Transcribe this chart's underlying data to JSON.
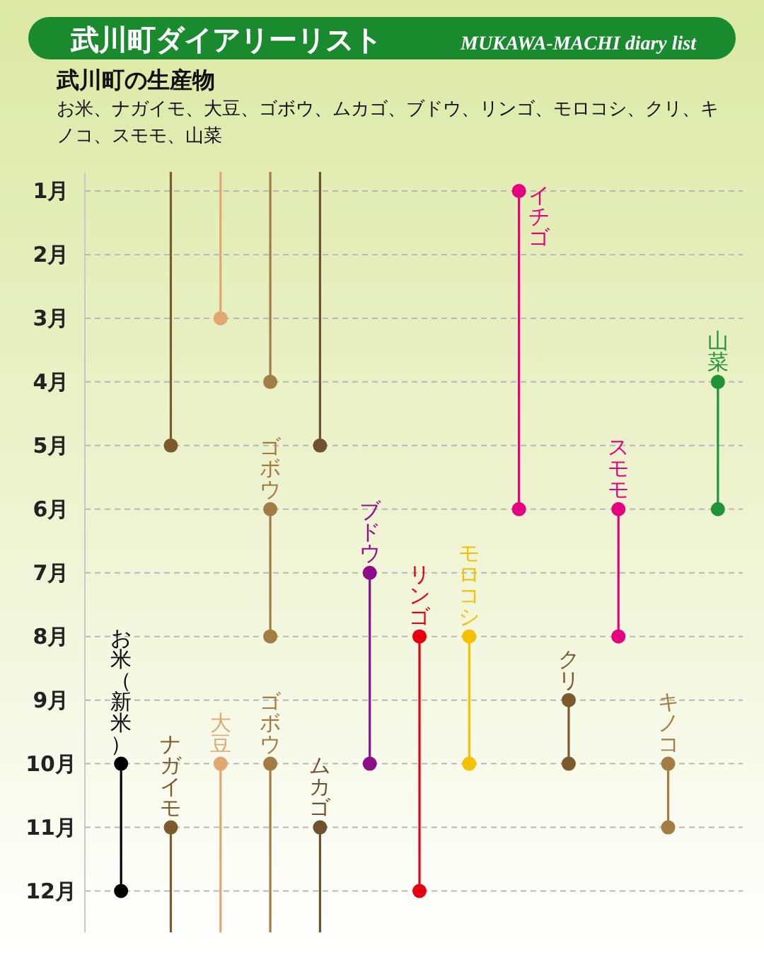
{
  "chart_data": {
    "type": "line",
    "title": "武川町ダイアリーリスト",
    "subtitle": "MUKAWA-MACHI diary list",
    "annotations": [
      "武川町の生産物",
      "お米、ナガイモ、大豆、ゴボウ、ムカゴ、ブドウ、リンゴ、モロコシ、クリ、キノコ、スモモ、山菜"
    ],
    "categories": [
      "お米（新米）",
      "ナガイモ",
      "大豆",
      "ゴボウ",
      "ムカゴ",
      "ブドウ",
      "リンゴ",
      "モロコシ",
      "イチゴ",
      "クリ",
      "スモモ",
      "キノコ",
      "山菜"
    ],
    "series": [
      {
        "x": [
          "お米（新米）",
          "お米（新米）"
        ],
        "values": [
          10,
          12
        ],
        "color": "#000000",
        "marker": "none"
      },
      {
        "x": [
          "ナガイモ",
          "ナガイモ"
        ],
        "values": [
          0.7,
          5
        ],
        "color": "#7b5a2e",
        "marker": "none"
      },
      {
        "x": [
          "ナガイモ",
          "ナガイモ"
        ],
        "values": [
          11,
          12.65
        ],
        "color": "#7b5a2e",
        "marker": "none"
      },
      {
        "x": [
          "大豆",
          "大豆"
        ],
        "values": [
          0.7,
          3
        ],
        "color": "#e0a870",
        "marker": "none"
      },
      {
        "x": [
          "大豆",
          "大豆"
        ],
        "values": [
          10,
          12.65
        ],
        "color": "#e0a870",
        "marker": "none"
      },
      {
        "x": [
          "ゴボウ",
          "ゴボウ"
        ],
        "values": [
          0.7,
          4
        ],
        "color": "#a27c45",
        "marker": "none"
      },
      {
        "x": [
          "ゴボウ",
          "ゴボウ"
        ],
        "values": [
          6,
          8
        ],
        "color": "#a27c45",
        "marker": "none"
      },
      {
        "x": [
          "ゴボウ",
          "ゴボウ"
        ],
        "values": [
          10,
          12.65
        ],
        "color": "#a27c45",
        "marker": "none"
      },
      {
        "x": [
          "ムカゴ",
          "ムカゴ"
        ],
        "values": [
          0.7,
          5
        ],
        "color": "#6e5230",
        "marker": "none"
      },
      {
        "x": [
          "ムカゴ",
          "ムカゴ"
        ],
        "values": [
          11,
          12.65
        ],
        "color": "#6e5230",
        "marker": "none"
      },
      {
        "x": [
          "ブドウ",
          "ブドウ"
        ],
        "values": [
          7,
          10
        ],
        "color": "#8e0e8a",
        "marker": "none"
      },
      {
        "x": [
          "リンゴ",
          "リンゴ"
        ],
        "values": [
          8,
          12
        ],
        "color": "#e60012",
        "marker": "none"
      },
      {
        "x": [
          "モロコシ",
          "モロコシ"
        ],
        "values": [
          8,
          10
        ],
        "color": "#f5c000",
        "marker": "none"
      },
      {
        "x": [
          "イチゴ",
          "イチゴ"
        ],
        "values": [
          1,
          6
        ],
        "color": "#e4007f",
        "marker": "none"
      },
      {
        "x": [
          "クリ",
          "クリ"
        ],
        "values": [
          9,
          10
        ],
        "color": "#7b5a2e",
        "marker": "none"
      },
      {
        "x": [
          "スモモ",
          "スモモ"
        ],
        "values": [
          6,
          8
        ],
        "color": "#e4007f",
        "marker": "none"
      },
      {
        "x": [
          "キノコ",
          "キノコ"
        ],
        "values": [
          10,
          11
        ],
        "color": "#a27c45",
        "marker": "none"
      },
      {
        "x": [
          "山菜",
          "山菜"
        ],
        "values": [
          4,
          6
        ],
        "color": "#1f9437",
        "marker": "none"
      },
      {
        "type": "scatter",
        "x": [
          "お米（新米）",
          "お米（新米）",
          "ナガイモ",
          "ナガイモ",
          "大豆",
          "大豆",
          "ゴボウ",
          "ゴボウ",
          "ゴボウ",
          "ゴボウ",
          "ムカゴ",
          "ムカゴ",
          "ブドウ",
          "ブドウ",
          "リンゴ",
          "リンゴ",
          "モロコシ",
          "モロコシ",
          "イチゴ",
          "イチゴ",
          "クリ",
          "クリ",
          "スモモ",
          "スモモ",
          "キノコ",
          "キノコ",
          "山菜",
          "山菜"
        ],
        "values": [
          10,
          12,
          5,
          11,
          3,
          10,
          4,
          6,
          8,
          10,
          5,
          11,
          7,
          10,
          8,
          12,
          8,
          10,
          1,
          6,
          9,
          10,
          6,
          8,
          10,
          11,
          4,
          6
        ],
        "colors": [
          "#000000",
          "#000000",
          "#7b5a2e",
          "#7b5a2e",
          "#e0a870",
          "#e0a870",
          "#a27c45",
          "#a27c45",
          "#a27c45",
          "#a27c45",
          "#6e5230",
          "#6e5230",
          "#8e0e8a",
          "#8e0e8a",
          "#e60012",
          "#e60012",
          "#f5c000",
          "#f5c000",
          "#e4007f",
          "#e4007f",
          "#7b5a2e",
          "#7b5a2e",
          "#e4007f",
          "#e4007f",
          "#a27c45",
          "#a27c45",
          "#1f9437",
          "#1f9437"
        ]
      }
    ],
    "marker": "circle",
    "grid": "y",
    "ylim": [
      12.65,
      0.7
    ],
    "yticks": [
      {
        "value": 1,
        "label": "1月"
      },
      {
        "value": 2,
        "label": "2月"
      },
      {
        "value": 3,
        "label": "3月"
      },
      {
        "value": 4,
        "label": "4月"
      },
      {
        "value": 5,
        "label": "5月"
      },
      {
        "value": 6,
        "label": "6月"
      },
      {
        "value": 7,
        "label": "7月"
      },
      {
        "value": 8,
        "label": "8月"
      },
      {
        "value": 9,
        "label": "9月"
      },
      {
        "value": 10,
        "label": "10月"
      },
      {
        "value": 11,
        "label": "11月"
      },
      {
        "value": 12,
        "label": "12月"
      }
    ]
  }
}
